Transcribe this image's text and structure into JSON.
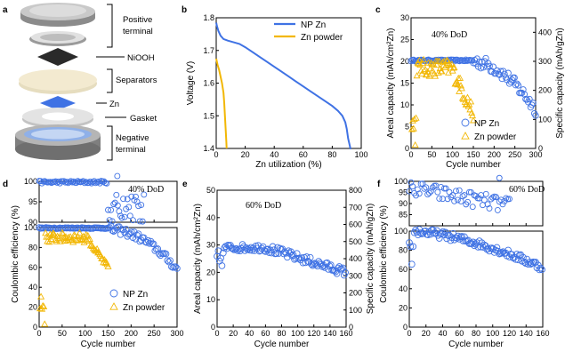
{
  "panels": {
    "a": {
      "letter": "a",
      "labels": {
        "positive_terminal": [
          "Positive",
          "terminal"
        ],
        "nioh": "NiOOH",
        "separators": "Separators",
        "zn": "Zn",
        "gasket": "Gasket",
        "negative_terminal": [
          "Negative",
          "terminal"
        ]
      }
    },
    "b": {
      "letter": "b"
    },
    "c": {
      "letter": "c",
      "annotation": "40% DoD"
    },
    "d": {
      "letter": "d",
      "annotation": "40% DoD"
    },
    "e": {
      "letter": "e",
      "annotation": "60% DoD"
    },
    "f": {
      "letter": "f",
      "annotation": "60% DoD"
    }
  },
  "colors": {
    "np_zn": "#3f72e4",
    "zn_powder": "#f2b705"
  },
  "chart_data": [
    {
      "id": "b",
      "type": "line",
      "xlabel": "Zn utilization (%)",
      "ylabel": "Voltage (V)",
      "xlim": [
        0,
        100
      ],
      "ylim": [
        1.4,
        1.8
      ],
      "xticks": [
        "0",
        "20",
        "40",
        "60",
        "80",
        "100"
      ],
      "yticks": [
        "1.4",
        "1.5",
        "1.6",
        "1.7",
        "1.8"
      ],
      "legend": "top-right",
      "series": [
        {
          "name": "NP Zn",
          "x": [
            0,
            0.5,
            1.5,
            3,
            5,
            8,
            12,
            16,
            20,
            25,
            30,
            35,
            40,
            45,
            50,
            55,
            60,
            65,
            70,
            75,
            80,
            84,
            87,
            89,
            90,
            91,
            92,
            92.5,
            93
          ],
          "y": [
            1.785,
            1.775,
            1.76,
            1.745,
            1.735,
            1.73,
            1.725,
            1.72,
            1.71,
            1.695,
            1.68,
            1.665,
            1.65,
            1.635,
            1.62,
            1.605,
            1.59,
            1.575,
            1.56,
            1.545,
            1.53,
            1.515,
            1.5,
            1.48,
            1.46,
            1.43,
            1.41,
            1.4,
            1.4
          ]
        },
        {
          "name": "Zn powder",
          "x": [
            0,
            0.5,
            1,
            2,
            3,
            4,
            5,
            5.5,
            6,
            6.5,
            7,
            7.2
          ],
          "y": [
            1.675,
            1.665,
            1.655,
            1.64,
            1.62,
            1.6,
            1.57,
            1.54,
            1.5,
            1.46,
            1.42,
            1.4
          ]
        }
      ]
    },
    {
      "id": "c",
      "type": "scatter",
      "xlabel": "Cycle number",
      "ylabel": "Areal capacity (mAh/cm²Zn)",
      "ylabel_right": "Specific capacity (mAh/gZn)",
      "xlim": [
        0,
        300
      ],
      "ylim": [
        0,
        30
      ],
      "ylim_right": [
        0,
        450
      ],
      "xticks": [
        "0",
        "50",
        "100",
        "150",
        "200",
        "250",
        "300"
      ],
      "yticks": [
        "0",
        "5",
        "10",
        "15",
        "20",
        "25",
        "30"
      ],
      "yticks_right": [
        "0",
        "100",
        "200",
        "300",
        "400"
      ],
      "legend": "bottom-right",
      "series": [
        {
          "name": "NP Zn",
          "rule": "y = 20.2 until cycle 150, then declining to ~9 at 300 with scatter",
          "x_range": [
            0,
            300
          ]
        },
        {
          "name": "Zn powder",
          "rule": "y ≈ 19 with scatter, fading from cycle 100 to 150; low early values near 0–10",
          "x_range": [
            0,
            150
          ]
        }
      ]
    },
    {
      "id": "d",
      "type": "scatter",
      "xlabel": "Cycle number",
      "ylabel": "Coulombic efficiency (%)",
      "xlim": [
        0,
        300
      ],
      "top_ylim": [
        90,
        100
      ],
      "top_yticks": [
        "90",
        "95",
        "100"
      ],
      "bottom_ylim": [
        0,
        100
      ],
      "bottom_yticks": [
        "0",
        "20",
        "40",
        "60",
        "80",
        "100"
      ],
      "xticks": [
        "0",
        "50",
        "100",
        "150",
        "200",
        "250",
        "300"
      ],
      "legend": "bottom-right",
      "series": [
        {
          "name": "NP Zn",
          "rule": "CE ≈ 100 until ~150, scattered 90–100 to ~230",
          "x_range": [
            0,
            300
          ]
        },
        {
          "name": "Zn powder",
          "rule": "CE ≈ 90 until ~110, falling to ~60 by 150; early low values 0–50",
          "x_range": [
            0,
            150
          ]
        }
      ]
    },
    {
      "id": "e",
      "type": "scatter",
      "xlabel": "Cycle number",
      "ylabel": "Areal capacity (mAh/cm²Zn)",
      "ylabel_right": "Specific capacity (mAh/gZn)",
      "xlim": [
        0,
        160
      ],
      "ylim": [
        0,
        50
      ],
      "ylim_right": [
        0,
        800
      ],
      "xticks": [
        "0",
        "20",
        "40",
        "60",
        "80",
        "100",
        "120",
        "140",
        "160"
      ],
      "yticks": [
        "0",
        "10",
        "20",
        "30",
        "40",
        "50"
      ],
      "yticks_right": [
        "0",
        "100",
        "200",
        "300",
        "400",
        "500",
        "600",
        "700",
        "800"
      ],
      "series": [
        {
          "name": "NP Zn",
          "rule": "y ≈ 29–30 until ~60, then slowly declining to ~20 at 160",
          "x_range": [
            0,
            160
          ]
        }
      ]
    },
    {
      "id": "f",
      "type": "scatter",
      "xlabel": "Cycle number",
      "ylabel": "Coulombic efficiency (%)",
      "xlim": [
        0,
        160
      ],
      "top_ylim": [
        80,
        100
      ],
      "top_yticks": [
        "85",
        "90",
        "95",
        "100"
      ],
      "bottom_ylim": [
        0,
        100
      ],
      "bottom_yticks": [
        "0",
        "20",
        "40",
        "60",
        "80",
        "100"
      ],
      "xticks": [
        "0",
        "20",
        "40",
        "60",
        "80",
        "100",
        "120",
        "140",
        "160"
      ],
      "series": [
        {
          "name": "NP Zn",
          "rule": "CE ≈ 100 at start, drifting down to ~60 by 160 with scatter",
          "x_range": [
            0,
            160
          ]
        }
      ]
    }
  ]
}
